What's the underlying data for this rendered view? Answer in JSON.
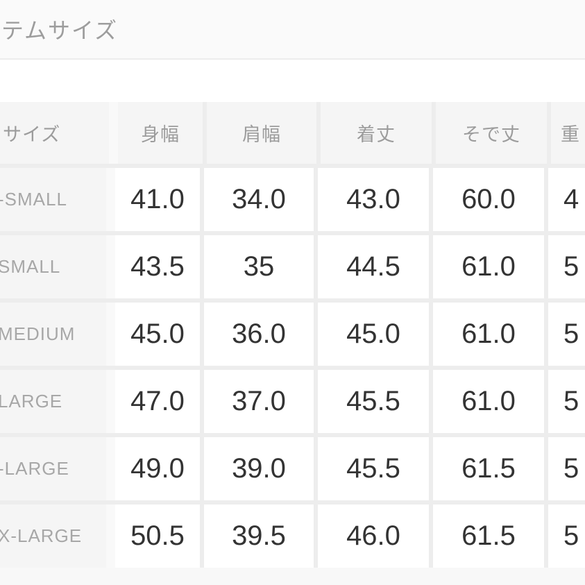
{
  "page": {
    "title": "テムサイズ"
  },
  "table": {
    "columns": [
      "サイズ",
      "身幅",
      "肩幅",
      "着丈",
      "そで丈",
      "重"
    ],
    "rows": [
      {
        "size": "-SMALL",
        "values": [
          "41.0",
          "34.0",
          "43.0",
          "60.0",
          "4"
        ]
      },
      {
        "size": "SMALL",
        "values": [
          "43.5",
          "35",
          "44.5",
          "61.0",
          "5"
        ]
      },
      {
        "size": "MEDIUM",
        "values": [
          "45.0",
          "36.0",
          "45.0",
          "61.0",
          "5"
        ]
      },
      {
        "size": "LARGE",
        "values": [
          "47.0",
          "37.0",
          "45.5",
          "61.0",
          "5"
        ]
      },
      {
        "size": "-LARGE",
        "values": [
          "49.0",
          "39.0",
          "45.5",
          "61.5",
          "5"
        ]
      },
      {
        "size": "X-LARGE",
        "values": [
          "50.5",
          "39.5",
          "46.0",
          "61.5",
          "5"
        ]
      }
    ]
  },
  "colors": {
    "number_text": "#333333",
    "label_text": "#a7a7a7",
    "header_text": "#9c9c9c",
    "cell_gray": "#f5f5f5",
    "gap_gray": "#ededed"
  }
}
